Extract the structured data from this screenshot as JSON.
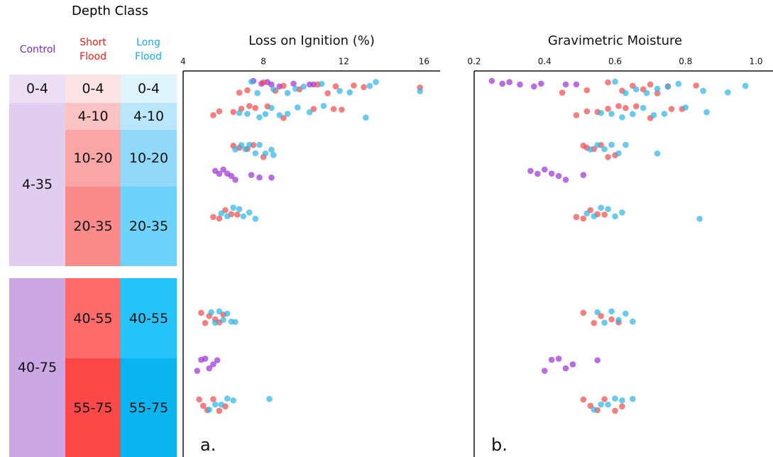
{
  "depth_table": {
    "title": "Depth Class",
    "columns": [
      "Control",
      "Short Flood",
      "Long Flood"
    ],
    "control": [
      "0-4",
      "4-35",
      "40-75"
    ],
    "short_flood": [
      "0-4",
      "4-10",
      "10-20",
      "20-35",
      "40-55",
      "55-75"
    ],
    "long_flood": [
      "0-4",
      "4-10",
      "10-20",
      "20-35",
      "40-55",
      "55-75"
    ]
  },
  "chart_data": [
    {
      "type": "strip",
      "title": "Loss on Ignition (%)",
      "annotation": "a.",
      "xlim": [
        4,
        16.8
      ],
      "xticks": [
        4,
        8,
        12,
        16
      ],
      "series": [
        {
          "color": "#9b2fd1",
          "values": [
            [
              7.5,
              7.9,
              8.2,
              8.4,
              8.8,
              9.5,
              10.3,
              10.5
            ],
            [],
            [],
            [
              5.6,
              5.8,
              6.0,
              6.2,
              6.4,
              6.6,
              7.4,
              7.8,
              8.4
            ],
            [],
            [],
            [
              4.7,
              4.9,
              5.1,
              5.3,
              5.5,
              5.7
            ],
            []
          ]
        },
        {
          "color": "#f04848",
          "values": [
            [
              6.8,
              7.2,
              8.0,
              8.6,
              9.0,
              9.8,
              10.7,
              11.2,
              11.6,
              12.5,
              13.0,
              15.8
            ],
            [
              5.5,
              5.8,
              6.5,
              6.9,
              7.3,
              7.6,
              8.2,
              9.0,
              10.5,
              11.5,
              11.9
            ],
            [
              6.5,
              6.8,
              7.2,
              7.5,
              8.0
            ],
            [],
            [
              5.5,
              5.8,
              6.1,
              6.4,
              6.7
            ],
            [
              4.9,
              5.1,
              5.3,
              5.6,
              5.8,
              6.0
            ],
            [],
            [
              4.8,
              5.0,
              5.2,
              5.5,
              5.8,
              6.1
            ]
          ]
        },
        {
          "color": "#2bb3e6",
          "values": [
            [
              7.4,
              7.7,
              8.5,
              9.2,
              9.6,
              10.0,
              10.9,
              11.8,
              12.3,
              13.3,
              13.6,
              15.8
            ],
            [
              6.8,
              7.2,
              7.8,
              8.1,
              8.4,
              8.8,
              9.2,
              9.7,
              10.3,
              11.0,
              13.1
            ],
            [
              6.6,
              6.9,
              7.1,
              7.3,
              7.6,
              7.8,
              8.1,
              8.4,
              8.5
            ],
            [],
            [
              5.9,
              6.2,
              6.5,
              6.8,
              7.0,
              7.3,
              7.6
            ],
            [
              5.4,
              5.6,
              5.8,
              6.0,
              6.2,
              6.4,
              6.6
            ],
            [],
            [
              5.3,
              5.6,
              5.9,
              6.2,
              6.5,
              8.3
            ]
          ]
        }
      ]
    },
    {
      "type": "strip",
      "title": "Gravimetric Moisture",
      "annotation": "b.",
      "xlim": [
        0.2,
        1.0
      ],
      "xticks": [
        0.2,
        0.4,
        0.6,
        0.8,
        {
          "value": 1.0,
          "label": "1.0"
        }
      ],
      "series": [
        {
          "color": "#9b2fd1",
          "values": [
            [
              0.25,
              0.28,
              0.3,
              0.33,
              0.37,
              0.39,
              0.46,
              0.49
            ],
            [],
            [],
            [
              0.36,
              0.38,
              0.4,
              0.42,
              0.44,
              0.46,
              0.51
            ],
            [],
            [],
            [
              0.4,
              0.42,
              0.44,
              0.46,
              0.48,
              0.55
            ],
            []
          ]
        },
        {
          "color": "#f04848",
          "values": [
            [
              0.45,
              0.52,
              0.58,
              0.62,
              0.65,
              0.68,
              0.7,
              0.72,
              0.75,
              0.83
            ],
            [
              0.49,
              0.52,
              0.55,
              0.58,
              0.61,
              0.63,
              0.66,
              0.7,
              0.76,
              0.79
            ],
            [
              0.51,
              0.52,
              0.54,
              0.56,
              0.58,
              0.6
            ],
            [],
            [
              0.49,
              0.51,
              0.53,
              0.55,
              0.57
            ],
            [
              0.51,
              0.54,
              0.56,
              0.59,
              0.61
            ],
            [],
            [
              0.51,
              0.53,
              0.55,
              0.57,
              0.6,
              0.62
            ]
          ]
        },
        {
          "color": "#2bb3e6",
          "values": [
            [
              0.6,
              0.63,
              0.66,
              0.69,
              0.72,
              0.75,
              0.78,
              0.85,
              0.92,
              0.97
            ],
            [
              0.56,
              0.59,
              0.62,
              0.65,
              0.68,
              0.71,
              0.74,
              0.8,
              0.86
            ],
            [
              0.53,
              0.55,
              0.57,
              0.59,
              0.61,
              0.63,
              0.72
            ],
            [],
            [
              0.52,
              0.54,
              0.56,
              0.58,
              0.6,
              0.62,
              0.84
            ],
            [
              0.55,
              0.57,
              0.59,
              0.61,
              0.63,
              0.65
            ],
            [],
            [
              0.54,
              0.56,
              0.58,
              0.6,
              0.62,
              0.65
            ]
          ]
        }
      ]
    }
  ]
}
